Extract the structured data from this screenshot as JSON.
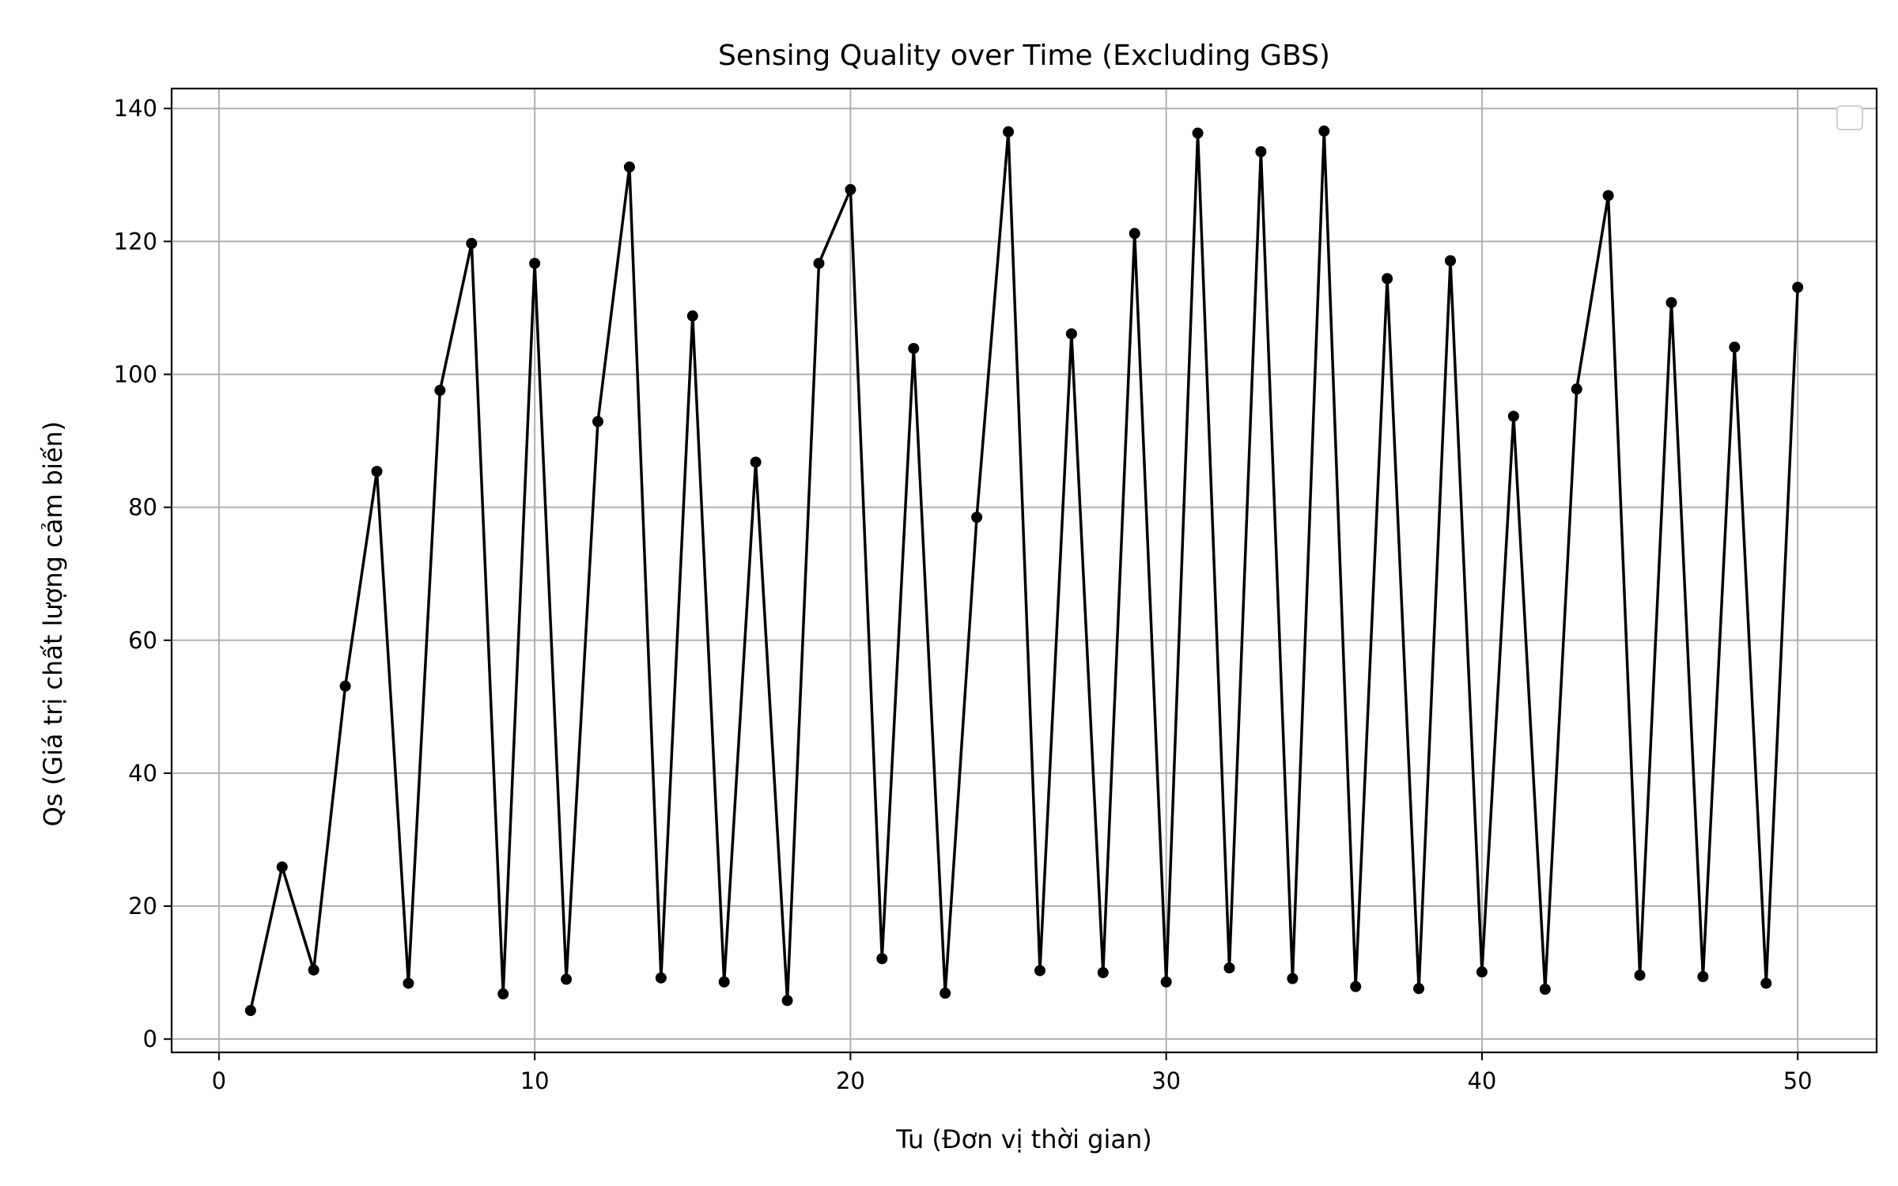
{
  "chart_data": {
    "type": "line",
    "title": "Sensing Quality over Time (Excluding GBS)",
    "xlabel": "Tu (Đơn vị thời gian)",
    "ylabel": "Qs (Giá trị chất lượng cảm biến)",
    "xlim": [
      -1.5,
      52.5
    ],
    "ylim": [
      -2,
      143
    ],
    "xticks": [
      0,
      10,
      20,
      30,
      40,
      50
    ],
    "yticks": [
      0,
      20,
      40,
      60,
      80,
      100,
      120,
      140
    ],
    "grid": true,
    "legend": "top-right",
    "line_color": "#000000",
    "marker": "circle",
    "series": [
      {
        "x": [
          1,
          2,
          3,
          4,
          5,
          6,
          7,
          8,
          9,
          10,
          11,
          12,
          13,
          14,
          15,
          16,
          17,
          18,
          19,
          20,
          21,
          22,
          23,
          24,
          25,
          26,
          27,
          28,
          29,
          30,
          31,
          32,
          33,
          34,
          35,
          36,
          37,
          38,
          39,
          40,
          41,
          42,
          43,
          44,
          45,
          46,
          47,
          48,
          49,
          50
        ],
        "y": [
          4.3,
          25.9,
          10.4,
          53.1,
          85.4,
          8.4,
          97.6,
          119.7,
          6.8,
          116.7,
          9.0,
          92.9,
          131.2,
          9.2,
          108.8,
          8.6,
          86.8,
          5.8,
          116.7,
          127.8,
          12.1,
          103.9,
          6.9,
          78.5,
          136.5,
          10.3,
          106.1,
          10.0,
          121.2,
          8.6,
          136.3,
          10.7,
          133.5,
          9.1,
          136.6,
          7.9,
          114.4,
          7.6,
          117.1,
          10.1,
          93.7,
          7.5,
          97.8,
          126.9,
          9.6,
          110.8,
          9.4,
          104.1,
          8.4,
          113.1
        ]
      }
    ]
  }
}
